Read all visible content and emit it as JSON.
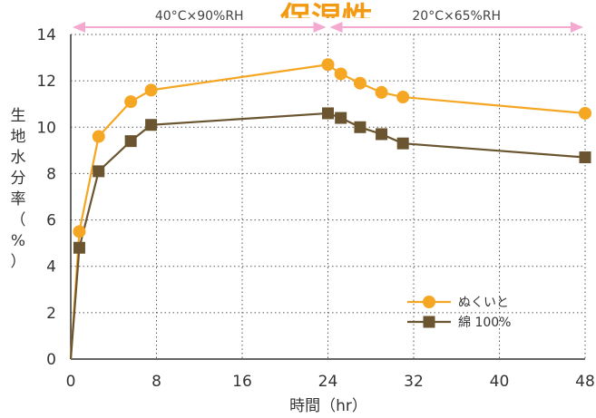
{
  "chart_data": {
    "type": "line",
    "title": "保湿性",
    "xlabel": "時間（hr）",
    "ylabel": "生地水分率（%）",
    "xlim": [
      0,
      48
    ],
    "ylim": [
      0,
      14
    ],
    "x_ticks": [
      0,
      8,
      16,
      24,
      32,
      40,
      48
    ],
    "y_ticks": [
      0,
      2,
      4,
      6,
      8,
      10,
      12,
      14
    ],
    "grid": true,
    "legend_position": "lower-right",
    "conditions": [
      {
        "label": "40°C×90%RH",
        "x_range": [
          0,
          24
        ]
      },
      {
        "label": "20°C×65%RH",
        "x_range": [
          24,
          48
        ]
      }
    ],
    "series": [
      {
        "name": "ぬくいと",
        "color": "#f5a623",
        "marker": "circle",
        "points": [
          [
            0,
            0
          ],
          [
            0.8,
            5.5
          ],
          [
            2.6,
            9.6
          ],
          [
            5.6,
            11.1
          ],
          [
            7.5,
            11.6
          ],
          [
            24,
            12.7
          ],
          [
            25.2,
            12.3
          ],
          [
            27,
            11.9
          ],
          [
            29,
            11.5
          ],
          [
            31,
            11.3
          ],
          [
            48,
            10.6
          ]
        ]
      },
      {
        "name": "綿 100%",
        "color": "#6b5530",
        "marker": "square",
        "points": [
          [
            0,
            0
          ],
          [
            0.8,
            4.8
          ],
          [
            2.6,
            8.1
          ],
          [
            5.6,
            9.4
          ],
          [
            7.5,
            10.1
          ],
          [
            24,
            10.6
          ],
          [
            25.2,
            10.4
          ],
          [
            27,
            10.0
          ],
          [
            29,
            9.7
          ],
          [
            31,
            9.3
          ],
          [
            48,
            8.7
          ]
        ]
      }
    ]
  }
}
